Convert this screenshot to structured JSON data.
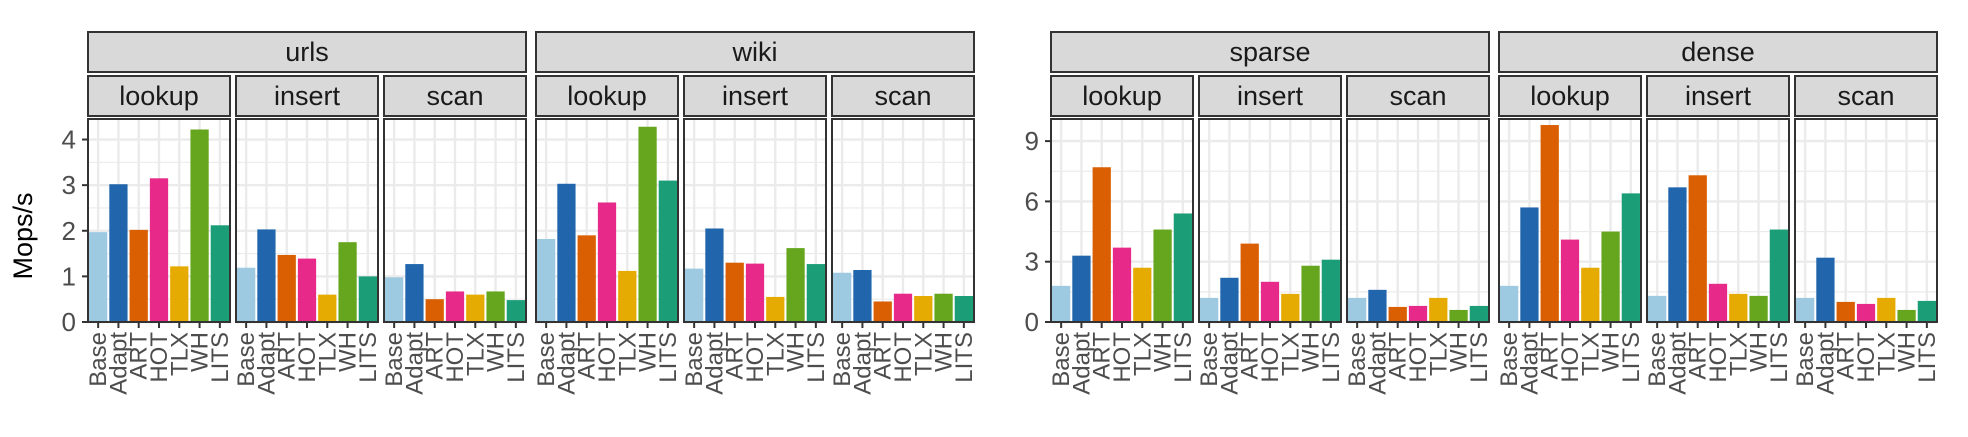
{
  "chart_data": {
    "type": "bar",
    "ylabel": "Mops/s",
    "xlabel": "",
    "categories": [
      "Base",
      "Adapt",
      "ART",
      "HOT",
      "TLX",
      "WH",
      "LITS"
    ],
    "colors": [
      "#9ecae1",
      "#2166ac",
      "#d95f02",
      "#e7298a",
      "#e6ab02",
      "#66a61e",
      "#1b9e77"
    ],
    "operations": [
      "lookup",
      "insert",
      "scan"
    ],
    "groups": [
      {
        "datasets": [
          {
            "name": "urls",
            "panels": [
              {
                "op": "lookup",
                "values": [
                  1.97,
                  3.02,
                  2.02,
                  3.15,
                  1.22,
                  4.22,
                  2.12
                ]
              },
              {
                "op": "insert",
                "values": [
                  1.19,
                  2.03,
                  1.47,
                  1.39,
                  0.6,
                  1.75,
                  1.0
                ]
              },
              {
                "op": "scan",
                "values": [
                  0.98,
                  1.27,
                  0.5,
                  0.67,
                  0.6,
                  0.67,
                  0.48
                ]
              }
            ]
          },
          {
            "name": "wiki",
            "panels": [
              {
                "op": "lookup",
                "values": [
                  1.82,
                  3.03,
                  1.9,
                  2.62,
                  1.12,
                  4.28,
                  3.1
                ]
              },
              {
                "op": "insert",
                "values": [
                  1.17,
                  2.05,
                  1.3,
                  1.28,
                  0.55,
                  1.62,
                  1.27
                ]
              },
              {
                "op": "scan",
                "values": [
                  1.08,
                  1.14,
                  0.45,
                  0.62,
                  0.57,
                  0.62,
                  0.57
                ]
              }
            ]
          }
        ],
        "ylim": [
          0,
          4.45
        ],
        "yticks": [
          0,
          1,
          2,
          3,
          4
        ],
        "ytick_labels": [
          "0",
          "1",
          "2",
          "3",
          "4"
        ]
      },
      {
        "datasets": [
          {
            "name": "sparse",
            "panels": [
              {
                "op": "lookup",
                "values": [
                  1.8,
                  3.3,
                  7.7,
                  3.7,
                  2.7,
                  4.6,
                  5.4
                ]
              },
              {
                "op": "insert",
                "values": [
                  1.2,
                  2.2,
                  3.9,
                  2.0,
                  1.4,
                  2.8,
                  3.1
                ]
              },
              {
                "op": "scan",
                "values": [
                  1.2,
                  1.6,
                  0.75,
                  0.8,
                  1.2,
                  0.6,
                  0.8
                ]
              }
            ]
          },
          {
            "name": "dense",
            "panels": [
              {
                "op": "lookup",
                "values": [
                  1.8,
                  5.7,
                  9.8,
                  4.1,
                  2.7,
                  4.5,
                  6.4
                ]
              },
              {
                "op": "insert",
                "values": [
                  1.3,
                  6.7,
                  7.3,
                  1.9,
                  1.4,
                  1.3,
                  4.6
                ]
              },
              {
                "op": "scan",
                "values": [
                  1.2,
                  3.2,
                  1.0,
                  0.9,
                  1.2,
                  0.6,
                  1.05
                ]
              }
            ]
          }
        ],
        "ylim": [
          0,
          10.1
        ],
        "yticks": [
          0,
          3,
          6,
          9
        ],
        "ytick_labels": [
          "0",
          "3",
          "6",
          "9"
        ]
      }
    ]
  }
}
